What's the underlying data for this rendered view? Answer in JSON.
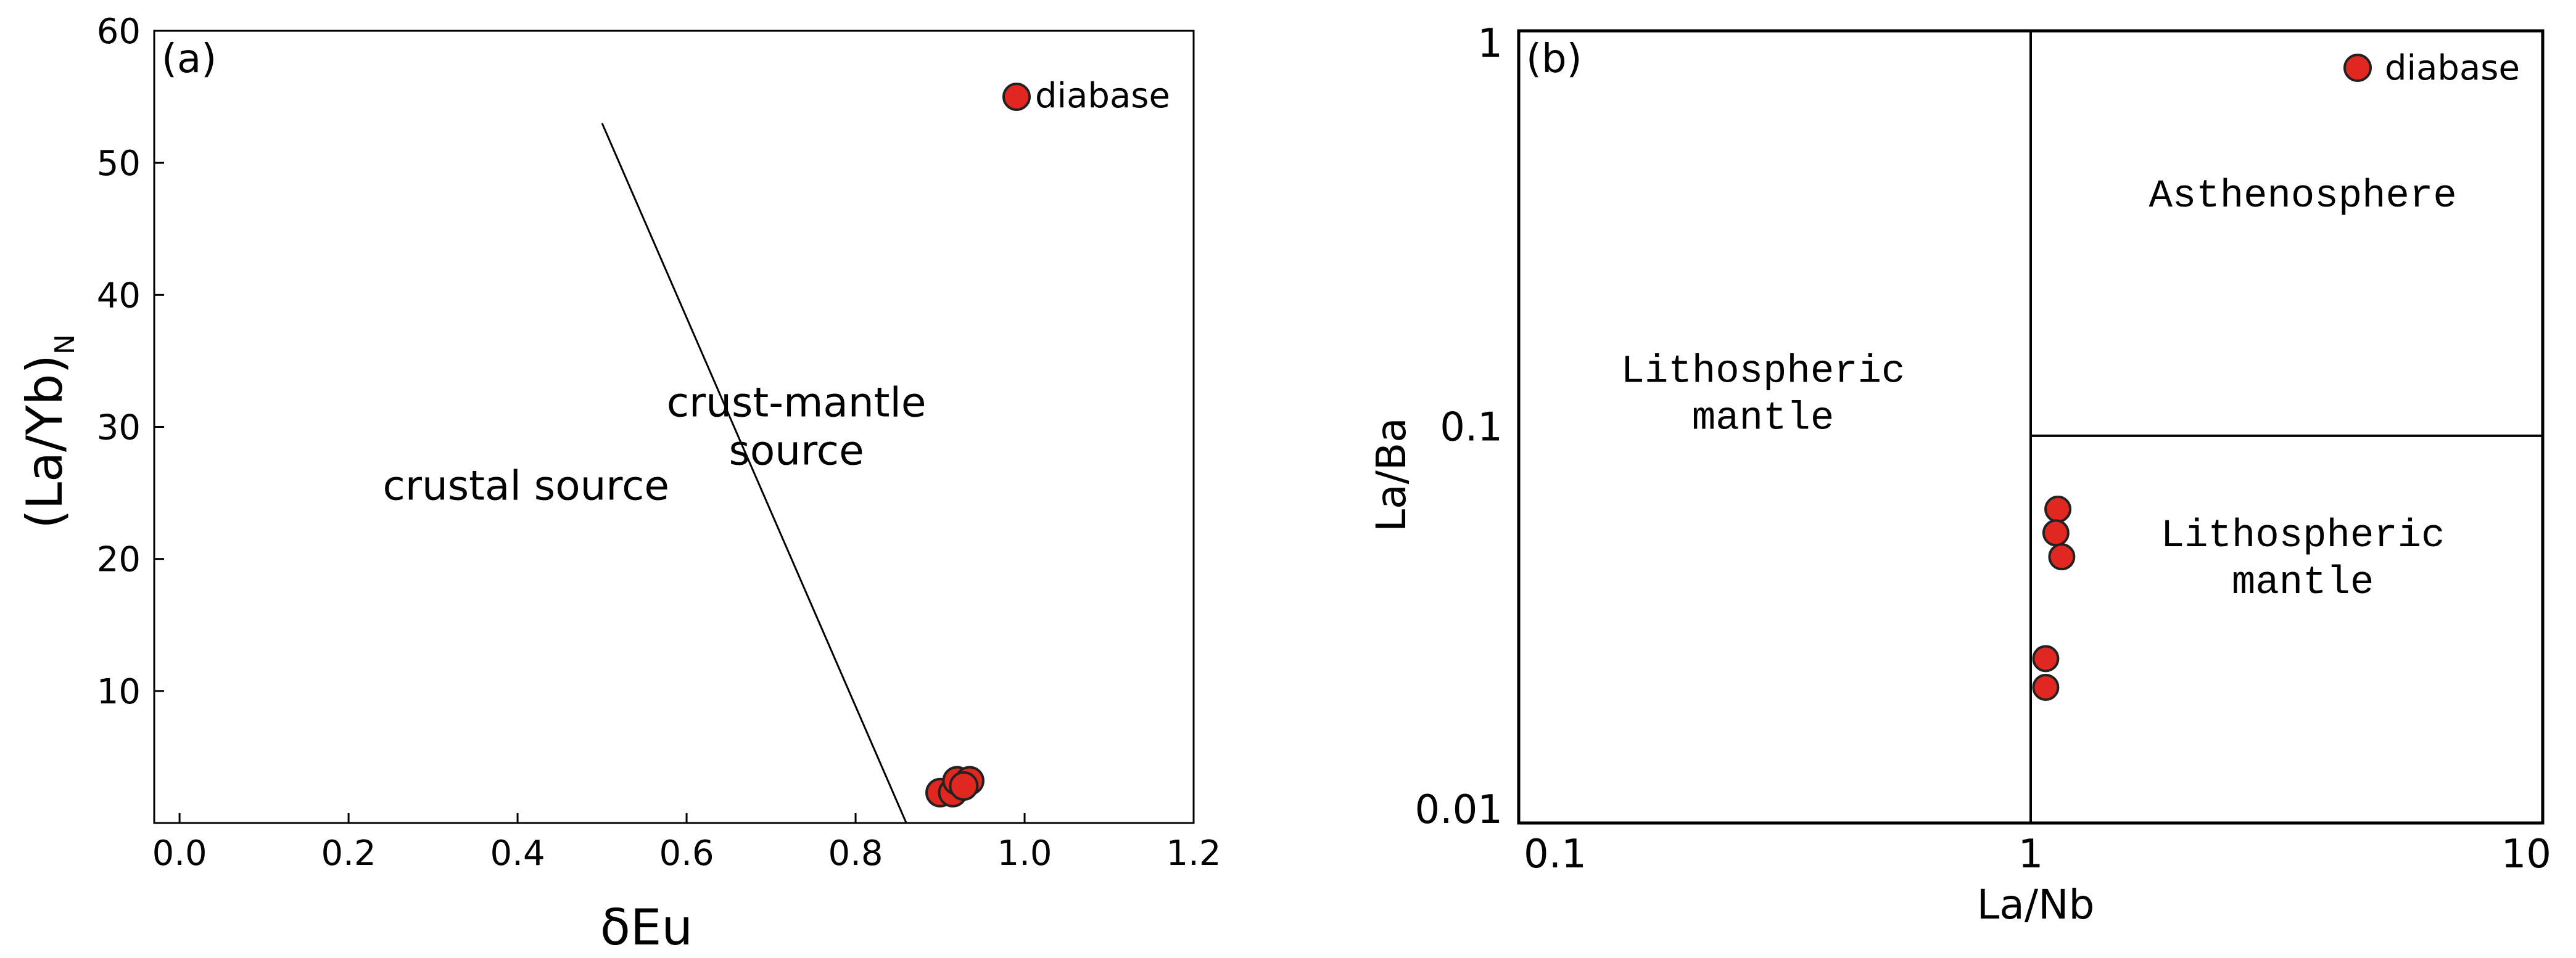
{
  "chart_data": [
    {
      "panel_label": "(a)",
      "type": "scatter",
      "xlabel": "δEu",
      "ylabel_main": "(La/Yb)",
      "ylabel_sub": "N",
      "xlim": [
        -0.03,
        1.2
      ],
      "ylim": [
        0,
        60
      ],
      "x_ticks": [
        "0.0",
        "0.2",
        "0.4",
        "0.6",
        "0.8",
        "1.0",
        "1.2"
      ],
      "y_ticks": [
        "10",
        "20",
        "30",
        "40",
        "50",
        "60"
      ],
      "x_tick_values": [
        0.0,
        0.2,
        0.4,
        0.6,
        0.8,
        1.0,
        1.2
      ],
      "y_tick_values": [
        10,
        20,
        30,
        40,
        50,
        60
      ],
      "series": [
        {
          "name": "diabase",
          "color": "#e02820",
          "points": [
            {
              "x": 0.9,
              "y": 2.3
            },
            {
              "x": 0.915,
              "y": 2.3
            },
            {
              "x": 0.92,
              "y": 3.2
            },
            {
              "x": 0.935,
              "y": 3.2
            },
            {
              "x": 0.928,
              "y": 2.8
            }
          ]
        }
      ],
      "boundary_line": {
        "from": [
          0.5,
          53.0
        ],
        "to": [
          0.86,
          0
        ]
      },
      "regions": [
        {
          "name": "crustal-source",
          "lines": [
            "crustal source"
          ],
          "x": 0.41,
          "y": 24.5
        },
        {
          "name": "crust-mantle-source",
          "lines": [
            "crust-mantle",
            "source"
          ],
          "x": 0.73,
          "y": 30.8
        }
      ],
      "legend": {
        "label": "diabase",
        "placement": "top-right"
      }
    },
    {
      "panel_label": "(b)",
      "type": "scatter",
      "xscale": "log",
      "yscale": "log",
      "xlabel": "La/Nb",
      "ylabel": "La/Ba",
      "xlim": [
        0.1,
        10
      ],
      "ylim": [
        0.01,
        1
      ],
      "x_ticks": [
        "0.1",
        "1",
        "10"
      ],
      "y_ticks": [
        "0.01",
        "0.1",
        "1"
      ],
      "x_tick_values": [
        0.1,
        1,
        10
      ],
      "y_tick_values": [
        0.01,
        0.1,
        1
      ],
      "series": [
        {
          "name": "diabase",
          "color": "#e02820",
          "points": [
            {
              "x": 1.13,
              "y": 0.062
            },
            {
              "x": 1.12,
              "y": 0.054
            },
            {
              "x": 1.15,
              "y": 0.047
            },
            {
              "x": 1.07,
              "y": 0.026
            },
            {
              "x": 1.07,
              "y": 0.022
            }
          ]
        }
      ],
      "boundaries": [
        {
          "from": [
            1,
            0.01
          ],
          "to": [
            1,
            1
          ]
        },
        {
          "from": [
            1,
            0.095
          ],
          "to": [
            10,
            0.095
          ]
        }
      ],
      "regions": [
        {
          "name": "lithospheric-mantle-left",
          "lines": [
            "Lithospheric",
            "mantle"
          ],
          "x": 0.3,
          "y": 0.13
        },
        {
          "name": "asthenosphere",
          "lines": [
            "Asthenosphere"
          ],
          "x": 3.4,
          "y": 0.36
        },
        {
          "name": "lithospheric-mantle-right",
          "lines": [
            "Lithospheric",
            "mantle"
          ],
          "x": 3.4,
          "y": 0.05
        }
      ],
      "legend": {
        "label": "diabase",
        "placement": "top-right"
      }
    }
  ]
}
